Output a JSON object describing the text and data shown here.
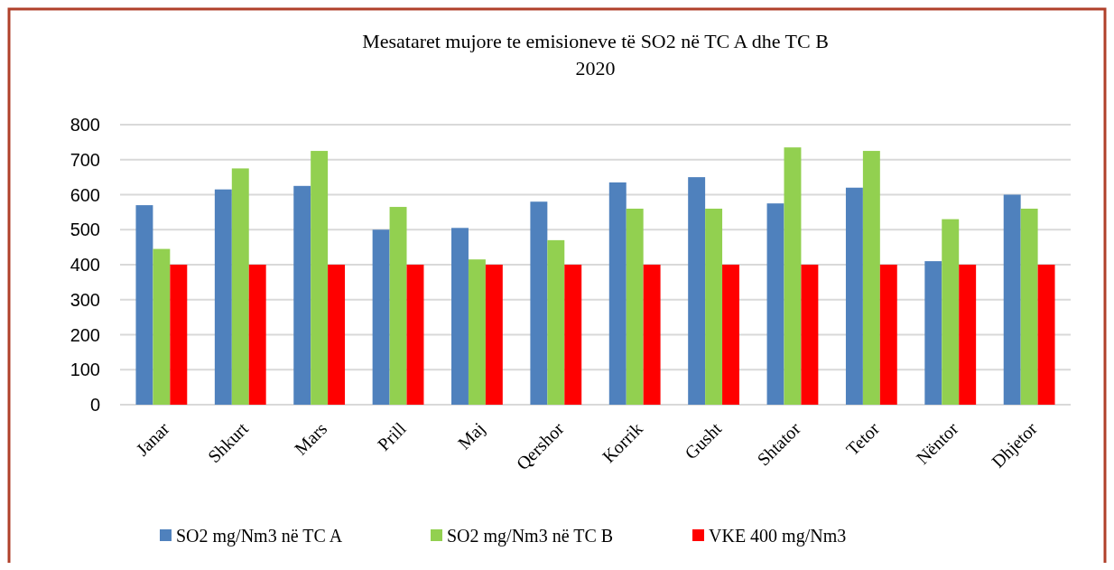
{
  "chart_data": {
    "type": "bar",
    "title": "Mesataret mujore te emisioneve të SO2 në TC A dhe TC B",
    "subtitle": "2020",
    "categories": [
      "Janar",
      "Shkurt",
      "Mars",
      "Prill",
      "Maj",
      "Qershor",
      "Korrik",
      "Gusht",
      "Shtator",
      "Tetor",
      "Nëntor",
      "Dhjetor"
    ],
    "series": [
      {
        "name": "SO2 mg/Nm3 në TC A",
        "color": "#4f81bd",
        "values": [
          570,
          615,
          625,
          500,
          505,
          580,
          635,
          650,
          575,
          620,
          410,
          600
        ]
      },
      {
        "name": "SO2 mg/Nm3 në TC B",
        "color": "#92d050",
        "values": [
          445,
          675,
          725,
          565,
          415,
          470,
          560,
          560,
          735,
          725,
          530,
          560
        ]
      },
      {
        "name": "VKE 400 mg/Nm3",
        "color": "#ff0000",
        "values": [
          400,
          400,
          400,
          400,
          400,
          400,
          400,
          400,
          400,
          400,
          400,
          400
        ]
      }
    ],
    "ylim": [
      0,
      800
    ],
    "yticks": [
      0,
      100,
      200,
      300,
      400,
      500,
      600,
      700,
      800
    ],
    "grid": "y",
    "legend": "bottom"
  }
}
